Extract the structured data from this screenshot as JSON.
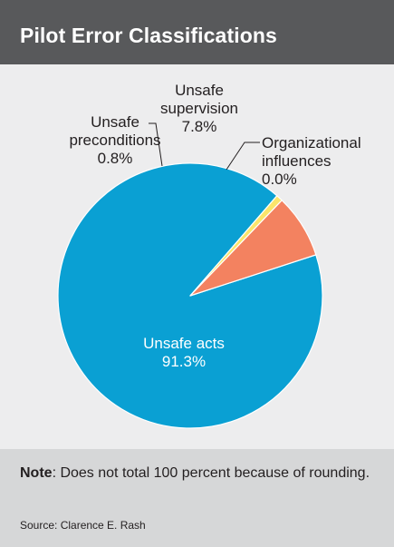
{
  "title": "Pilot Error Classifications",
  "chart_data": {
    "type": "pie",
    "title": "Pilot Error Classifications",
    "slices": [
      {
        "label_lines": [
          "Unsafe acts"
        ],
        "value_text": "91.3%",
        "value": 91.3,
        "color": "#0aa0d3"
      },
      {
        "label_lines": [
          "Unsafe",
          "preconditions"
        ],
        "value_text": "0.8%",
        "value": 0.8,
        "color": "#fbe56b"
      },
      {
        "label_lines": [
          "Unsafe",
          "supervision"
        ],
        "value_text": "7.8%",
        "value": 7.8,
        "color": "#f38260"
      },
      {
        "label_lines": [
          "Organizational",
          "influences"
        ],
        "value_text": "0.0%",
        "value": 0.0,
        "color": "#f38260"
      }
    ]
  },
  "footer": {
    "note_label": "Note",
    "note_text": ": Does not total 100 percent because of rounding.",
    "source": "Source: Clarence E. Rash"
  }
}
